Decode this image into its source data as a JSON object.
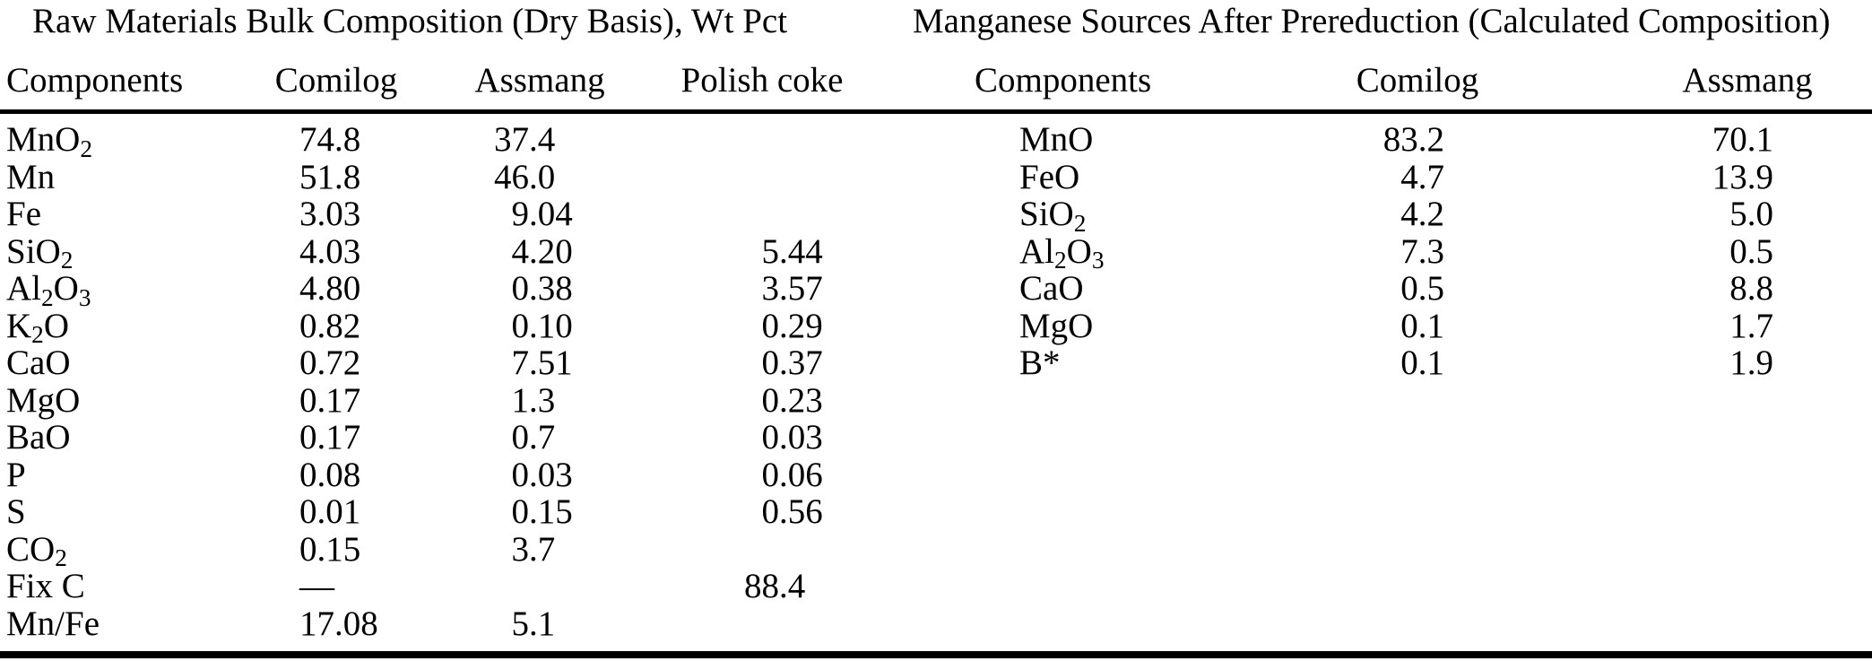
{
  "page": {
    "background_color": "#ffffff",
    "text_color": "#000000"
  },
  "left_table": {
    "title": "Raw Materials Bulk Composition (Dry Basis), Wt Pct",
    "columns": [
      "Components",
      "Comilog",
      "Assmang",
      "Polish coke"
    ],
    "rows": [
      {
        "component": "MnO_2",
        "comilog": "74.8",
        "assmang": "37.4",
        "polish_coke": ""
      },
      {
        "component": "Mn",
        "comilog": "51.8",
        "assmang": "46.0",
        "polish_coke": ""
      },
      {
        "component": "Fe",
        "comilog": "3.03",
        "assmang": "9.04",
        "polish_coke": ""
      },
      {
        "component": "SiO_2",
        "comilog": "4.03",
        "assmang": "4.20",
        "polish_coke": "5.44"
      },
      {
        "component": "Al_2O_3",
        "comilog": "4.80",
        "assmang": "0.38",
        "polish_coke": "3.57"
      },
      {
        "component": "K_2O",
        "comilog": "0.82",
        "assmang": "0.10",
        "polish_coke": "0.29"
      },
      {
        "component": "CaO",
        "comilog": "0.72",
        "assmang": "7.51",
        "polish_coke": "0.37"
      },
      {
        "component": "MgO",
        "comilog": "0.17",
        "assmang": "1.3",
        "polish_coke": "0.23"
      },
      {
        "component": "BaO",
        "comilog": "0.17",
        "assmang": "0.7",
        "polish_coke": "0.03"
      },
      {
        "component": "P",
        "comilog": "0.08",
        "assmang": "0.03",
        "polish_coke": "0.06"
      },
      {
        "component": "S",
        "comilog": "0.01",
        "assmang": "0.15",
        "polish_coke": "0.56"
      },
      {
        "component": "CO_2",
        "comilog": "0.15",
        "assmang": "3.7",
        "polish_coke": ""
      },
      {
        "component": "Fix C",
        "comilog": "—",
        "assmang": "",
        "polish_coke": "88.4"
      },
      {
        "component": "Mn/Fe",
        "comilog": "17.08",
        "assmang": "5.1",
        "polish_coke": ""
      }
    ]
  },
  "right_table": {
    "title": "Manganese Sources After Prereduction (Calculated Composition)",
    "columns": [
      "Components",
      "Comilog",
      "Assmang"
    ],
    "rows": [
      {
        "component": "MnO",
        "comilog": "83.2",
        "assmang": "70.1"
      },
      {
        "component": "FeO",
        "comilog": "4.7",
        "assmang": "13.9"
      },
      {
        "component": "SiO_2",
        "comilog": "4.2",
        "assmang": "5.0"
      },
      {
        "component": "Al_2O_3",
        "comilog": "7.3",
        "assmang": "0.5"
      },
      {
        "component": "CaO",
        "comilog": "0.5",
        "assmang": "8.8"
      },
      {
        "component": "MgO",
        "comilog": "0.1",
        "assmang": "1.7"
      },
      {
        "component": "B*",
        "comilog": "0.1",
        "assmang": "1.9"
      }
    ]
  },
  "chart_data": {
    "type": "table",
    "tables": [
      {
        "title": "Raw Materials Bulk Composition (Dry Basis), Wt Pct",
        "columns": [
          "Components",
          "Comilog",
          "Assmang",
          "Polish coke"
        ],
        "rows": [
          [
            "MnO2",
            74.8,
            37.4,
            null
          ],
          [
            "Mn",
            51.8,
            46.0,
            null
          ],
          [
            "Fe",
            3.03,
            9.04,
            null
          ],
          [
            "SiO2",
            4.03,
            4.2,
            5.44
          ],
          [
            "Al2O3",
            4.8,
            0.38,
            3.57
          ],
          [
            "K2O",
            0.82,
            0.1,
            0.29
          ],
          [
            "CaO",
            0.72,
            7.51,
            0.37
          ],
          [
            "MgO",
            0.17,
            1.3,
            0.23
          ],
          [
            "BaO",
            0.17,
            0.7,
            0.03
          ],
          [
            "P",
            0.08,
            0.03,
            0.06
          ],
          [
            "S",
            0.01,
            0.15,
            0.56
          ],
          [
            "CO2",
            0.15,
            3.7,
            null
          ],
          [
            "Fix C",
            null,
            null,
            88.4
          ],
          [
            "Mn/Fe",
            17.08,
            5.1,
            null
          ]
        ]
      },
      {
        "title": "Manganese Sources After Prereduction (Calculated Composition)",
        "columns": [
          "Components",
          "Comilog",
          "Assmang"
        ],
        "rows": [
          [
            "MnO",
            83.2,
            70.1
          ],
          [
            "FeO",
            4.7,
            13.9
          ],
          [
            "SiO2",
            4.2,
            5.0
          ],
          [
            "Al2O3",
            7.3,
            0.5
          ],
          [
            "CaO",
            0.5,
            8.8
          ],
          [
            "MgO",
            0.1,
            1.7
          ],
          [
            "B*",
            0.1,
            1.9
          ]
        ]
      }
    ]
  }
}
